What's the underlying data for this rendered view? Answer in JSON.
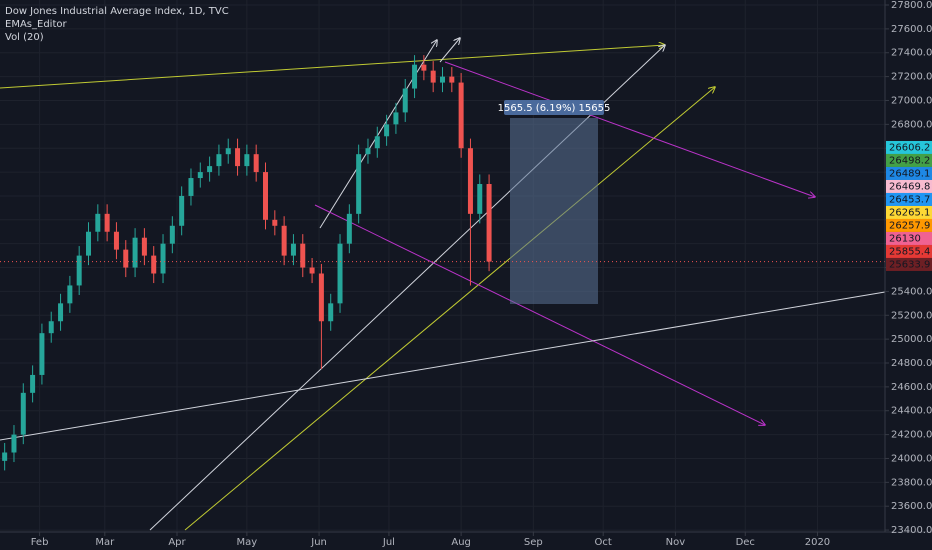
{
  "chart_data": {
    "type": "candlestick",
    "title": "Dow Jones Industrial Average Index, 1D, TVC",
    "indicators": [
      "EMAs_Editor",
      "Vol (20)"
    ],
    "up_color": "#26a69a",
    "down_color": "#ef5350",
    "x": [
      17,
      21,
      25,
      29,
      33,
      37,
      41,
      45,
      49,
      53,
      57,
      61,
      65,
      69,
      73,
      77,
      81,
      85,
      89,
      93,
      97,
      101,
      105,
      109,
      113,
      117,
      121,
      125,
      129,
      133,
      137,
      141,
      145,
      149,
      153,
      157,
      161,
      165,
      169,
      173,
      177,
      181,
      185,
      189,
      193,
      197,
      201,
      205,
      209,
      213,
      217,
      221,
      225
    ],
    "open": [
      23980,
      24050,
      24200,
      24550,
      24700,
      25050,
      25150,
      25300,
      25450,
      25700,
      25900,
      26050,
      25900,
      25750,
      25600,
      25850,
      25700,
      25550,
      25800,
      25950,
      26200,
      26350,
      26400,
      26450,
      26550,
      26600,
      26450,
      26550,
      26400,
      26000,
      25950,
      25700,
      25800,
      25600,
      25550,
      25150,
      25300,
      25800,
      26050,
      26550,
      26600,
      26700,
      26800,
      26900,
      27100,
      27300,
      27250,
      27150,
      27200,
      27150,
      26600,
      26050,
      26300
    ],
    "high": [
      24130,
      24280,
      24630,
      24780,
      25130,
      25230,
      25380,
      25530,
      25780,
      25980,
      26130,
      26130,
      25980,
      25830,
      25930,
      25930,
      25780,
      25880,
      26030,
      26280,
      26430,
      26480,
      26530,
      26630,
      26680,
      26680,
      26630,
      26630,
      26480,
      26080,
      26030,
      25880,
      25880,
      25680,
      25630,
      25380,
      25880,
      26130,
      26630,
      26680,
      26780,
      26880,
      26980,
      27180,
      27380,
      27380,
      27330,
      27280,
      27280,
      27230,
      26680,
      26380,
      26380
    ],
    "low": [
      23900,
      23970,
      24120,
      24470,
      24620,
      24970,
      25070,
      25220,
      25370,
      25620,
      25820,
      25820,
      25670,
      25520,
      25520,
      25620,
      25470,
      25470,
      25720,
      25870,
      26120,
      26270,
      26320,
      26370,
      26470,
      26370,
      26370,
      26320,
      25920,
      25870,
      25620,
      25620,
      25520,
      25470,
      24750,
      25070,
      25220,
      25720,
      25970,
      26470,
      26520,
      26620,
      26720,
      26820,
      27020,
      27170,
      27070,
      27070,
      27070,
      26520,
      25450,
      25970,
      25570
    ],
    "close": [
      24050,
      24200,
      24550,
      24700,
      25050,
      25150,
      25300,
      25450,
      25700,
      25900,
      26050,
      25900,
      25750,
      25600,
      25850,
      25700,
      25550,
      25800,
      25950,
      26200,
      26350,
      26400,
      26450,
      26550,
      26600,
      26450,
      26550,
      26400,
      26000,
      25950,
      25700,
      25800,
      25600,
      25550,
      25150,
      25300,
      25800,
      26050,
      26550,
      26600,
      26700,
      26800,
      26900,
      27100,
      27300,
      27250,
      27150,
      27200,
      27150,
      26600,
      26050,
      26300,
      25650
    ],
    "xlim": [
      15,
      395
    ],
    "xticks": [
      {
        "value": 32,
        "label": "Feb"
      },
      {
        "value": 60,
        "label": "Mar"
      },
      {
        "value": 91,
        "label": "Apr"
      },
      {
        "value": 121,
        "label": "May"
      },
      {
        "value": 152,
        "label": "Jun"
      },
      {
        "value": 182,
        "label": "Jul"
      },
      {
        "value": 213,
        "label": "Aug"
      },
      {
        "value": 244,
        "label": "Sep"
      },
      {
        "value": 274,
        "label": "Oct"
      },
      {
        "value": 305,
        "label": "Nov"
      },
      {
        "value": 335,
        "label": "Dec"
      },
      {
        "value": 366,
        "label": "2020"
      }
    ],
    "ylim": [
      23233,
      27842
    ],
    "yticks": [
      {
        "value": 23400,
        "label": "23400.00"
      },
      {
        "value": 23600,
        "label": "23600.00"
      },
      {
        "value": 23800,
        "label": "23800.00"
      },
      {
        "value": 24000,
        "label": "24000.00"
      },
      {
        "value": 24200,
        "label": "24200.00"
      },
      {
        "value": 24400,
        "label": "24400.00"
      },
      {
        "value": 24600,
        "label": "24600.00"
      },
      {
        "value": 24800,
        "label": "24800.00"
      },
      {
        "value": 25000,
        "label": "25000.00"
      },
      {
        "value": 25200,
        "label": "25200.00"
      },
      {
        "value": 25400,
        "label": "25400.00"
      },
      {
        "value": 25600,
        "label": "25600.00"
      },
      {
        "value": 25800,
        "label": "25800.00"
      },
      {
        "value": 26000,
        "label": "26000.00"
      },
      {
        "value": 26200,
        "label": "26200.00"
      },
      {
        "value": 26400,
        "label": "26400.00"
      },
      {
        "value": 26600,
        "label": "26600.00"
      },
      {
        "value": 26800,
        "label": "26800.00"
      },
      {
        "value": 27000,
        "label": "27000.00"
      },
      {
        "value": 27200,
        "label": "27200.00"
      },
      {
        "value": 27400,
        "label": "27400.00"
      },
      {
        "value": 27600,
        "label": "27600.00"
      },
      {
        "value": 27800,
        "label": "27800.00"
      }
    ],
    "grid": true,
    "price_labels": [
      {
        "value": 26606.2,
        "color": "#26c6da"
      },
      {
        "value": 26498.2,
        "color": "#43a047"
      },
      {
        "value": 26489.1,
        "color": "#1e88e5"
      },
      {
        "value": 26469.8,
        "color": "#f8bbd0"
      },
      {
        "value": 26453.7,
        "color": "#2196f3"
      },
      {
        "value": 26265.1,
        "color": "#fdd835"
      },
      {
        "value": 26257.9,
        "color": "#ff9800"
      },
      {
        "value": 26130.0,
        "color": "#f06292"
      },
      {
        "value": 25855.4,
        "color": "#e53935"
      },
      {
        "value": 25633.9,
        "color": "#6d1f24"
      }
    ],
    "annotations": [
      "1565.5 (6.19%) 15655"
    ]
  }
}
